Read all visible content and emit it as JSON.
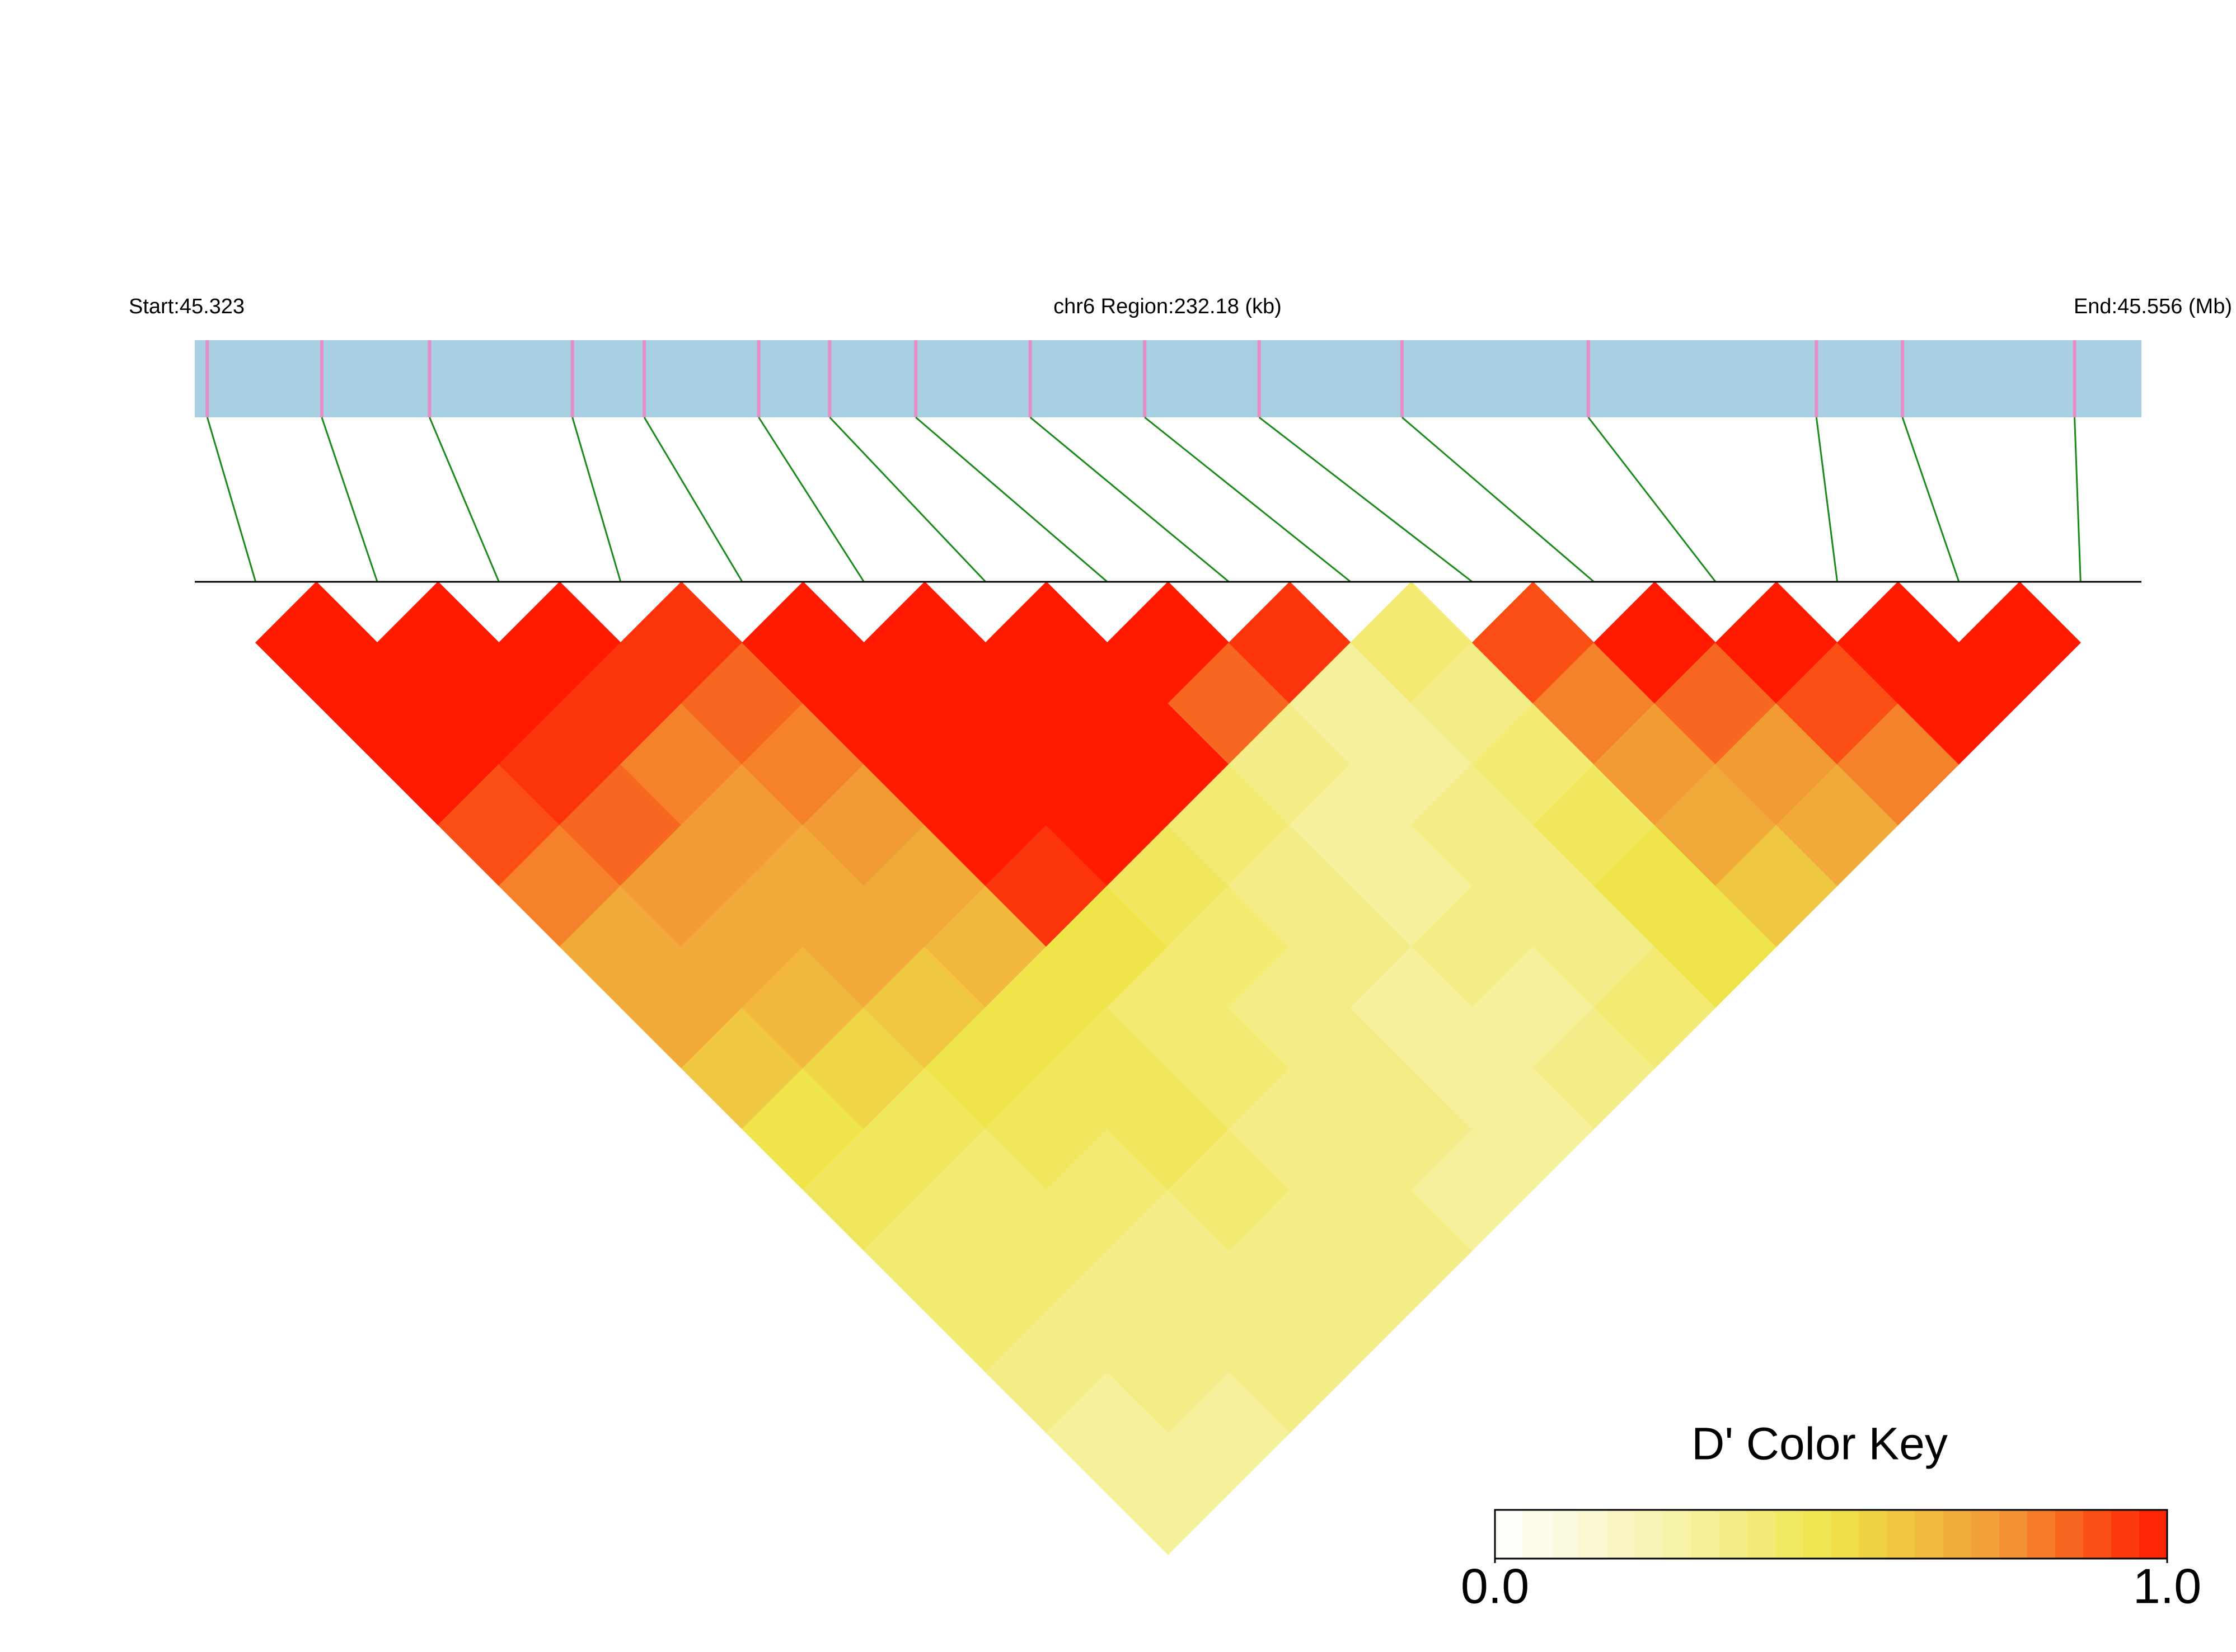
{
  "chart_data": {
    "type": "ld_heatmap",
    "start_label": "Start:45.323",
    "region_label": "chr6 Region:232.18 (kb)",
    "end_label": "End:45.556 (Mb)",
    "xlim": [
      45.323,
      45.556
    ],
    "positions": [
      45.3245,
      45.3382,
      45.3511,
      45.3682,
      45.3768,
      45.3905,
      45.399,
      45.4093,
      45.423,
      45.4367,
      45.4504,
      45.4675,
      45.4898,
      45.5171,
      45.5274,
      45.548
    ],
    "bar_color": "#a8d0e2",
    "snp_color": "#e58ec6",
    "link_color": "#1a8a1a",
    "dprime": [
      [
        1,
        1,
        1,
        0.9,
        0.8,
        0.7,
        0.7,
        0.6,
        0.5,
        0.45,
        0.4,
        0.4,
        0.35,
        0.3,
        0.3
      ],
      [
        1,
        1,
        0.95,
        0.85,
        0.75,
        0.7,
        0.65,
        0.55,
        0.45,
        0.4,
        0.4,
        0.35,
        0.35,
        0.3
      ],
      [
        1,
        0.95,
        0.8,
        0.75,
        0.7,
        0.7,
        0.6,
        0.5,
        0.45,
        0.4,
        0.35,
        0.35,
        0.35
      ],
      [
        0.95,
        0.85,
        0.8,
        0.75,
        0.7,
        0.65,
        0.5,
        0.45,
        0.45,
        0.4,
        0.35,
        0.35
      ],
      [
        1,
        1,
        1,
        1,
        0.95,
        0.5,
        0.4,
        0.4,
        0.35,
        0.35,
        0.35
      ],
      [
        1,
        1,
        1,
        1,
        0.45,
        0.4,
        0.35,
        0.35,
        0.35,
        0.3
      ],
      [
        1,
        1,
        1,
        0.4,
        0.35,
        0.35,
        0.3,
        0.3,
        0.3
      ],
      [
        1,
        0.85,
        0.35,
        0.3,
        0.3,
        0.35,
        0.3,
        0.35
      ],
      [
        0.95,
        0.3,
        0.3,
        0.35,
        0.35,
        0.35,
        0.4
      ],
      [
        0.4,
        0.35,
        0.4,
        0.45,
        0.5,
        0.5
      ],
      [
        0.9,
        0.8,
        0.75,
        0.7,
        0.6
      ],
      [
        1,
        0.85,
        0.75,
        0.7
      ],
      [
        1,
        0.9,
        0.8
      ],
      [
        1,
        1
      ],
      [
        1
      ]
    ],
    "colorbar": {
      "title": "D' Color Key",
      "lim": [
        0,
        1
      ],
      "ticks": [
        {
          "value": 0,
          "label": "0.0"
        },
        {
          "value": 1,
          "label": "1.0"
        }
      ],
      "colors": [
        "#ffffff",
        "#f7f3b0",
        "#efe44a",
        "#f29b35",
        "#ff1a00"
      ]
    }
  }
}
